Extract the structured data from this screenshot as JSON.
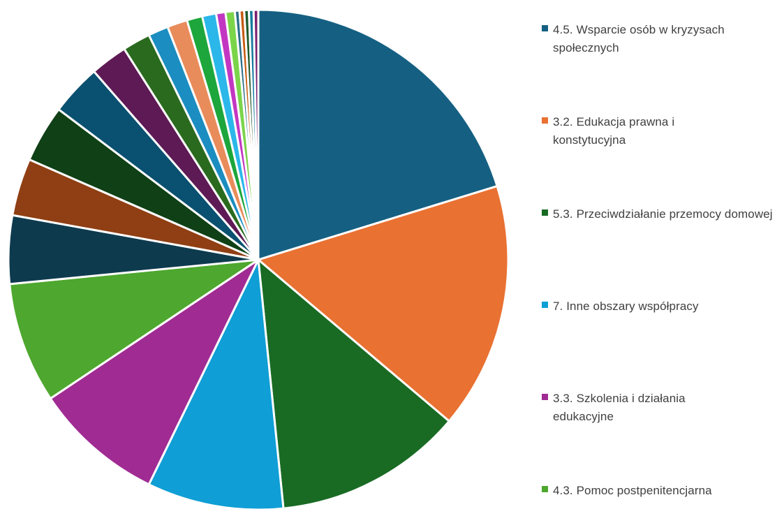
{
  "chart_data": {
    "type": "pie",
    "title": "",
    "legend_position": "right",
    "series": [
      {
        "name": "4.5. Wsparcie osób w kryzysach społecznych",
        "value": 20.2,
        "color": "#156082"
      },
      {
        "name": "3.2. Edukacja prawna i konstytucyjna",
        "value": 15.9,
        "color": "#E97132"
      },
      {
        "name": "5.3. Przeciwdziałanie przemocy domowej",
        "value": 12.2,
        "color": "#196B24"
      },
      {
        "name": "7. Inne obszary współpracy",
        "value": 8.8,
        "color": "#0F9ED5"
      },
      {
        "name": "3.3. Szkolenia i działania edukacyjne",
        "value": 8.4,
        "color": "#A02B93"
      },
      {
        "name": "4.3. Pomoc postpenitencjarna",
        "value": 7.8,
        "color": "#4EA72E"
      },
      {
        "name": "",
        "value": 4.4,
        "color": "#0E3A4E"
      },
      {
        "name": "",
        "value": 3.7,
        "color": "#8F3F13"
      },
      {
        "name": "",
        "value": 3.7,
        "color": "#0F4016"
      },
      {
        "name": "",
        "value": 3.3,
        "color": "#0A5070"
      },
      {
        "name": "",
        "value": 2.4,
        "color": "#5E1A55"
      },
      {
        "name": "",
        "value": 1.8,
        "color": "#2A6A1E"
      },
      {
        "name": "",
        "value": 1.3,
        "color": "#1B8DC0"
      },
      {
        "name": "",
        "value": 1.3,
        "color": "#E98C5B"
      },
      {
        "name": "",
        "value": 1.0,
        "color": "#1DA63B"
      },
      {
        "name": "",
        "value": 0.9,
        "color": "#2BB7EA"
      },
      {
        "name": "",
        "value": 0.6,
        "color": "#C237C1"
      },
      {
        "name": "",
        "value": 0.6,
        "color": "#7BD44A"
      },
      {
        "name": "",
        "value": 0.3,
        "color": "#2B6F88"
      },
      {
        "name": "",
        "value": 0.3,
        "color": "#C55A11"
      },
      {
        "name": "",
        "value": 0.3,
        "color": "#1F5A2B"
      },
      {
        "name": "",
        "value": 0.3,
        "color": "#127A9F"
      },
      {
        "name": "",
        "value": 0.3,
        "color": "#7A2070"
      }
    ]
  }
}
